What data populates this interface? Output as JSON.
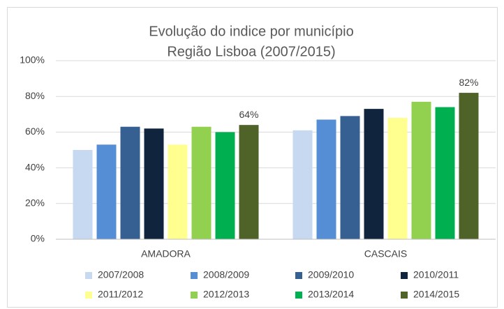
{
  "chart_data": {
    "type": "bar",
    "title": "Evolução do indice por município",
    "subtitle": "Região Lisboa (2007/2015)",
    "categories": [
      "AMADORA",
      "CASCAIS"
    ],
    "series": [
      {
        "name": "2007/2008",
        "color": "#c6d9f1",
        "values": [
          50,
          61
        ]
      },
      {
        "name": "2008/2009",
        "color": "#558ed5",
        "values": [
          53,
          67
        ]
      },
      {
        "name": "2009/2010",
        "color": "#376092",
        "values": [
          63,
          69
        ]
      },
      {
        "name": "2010/2011",
        "color": "#10243e",
        "values": [
          62,
          73
        ]
      },
      {
        "name": "2011/2012",
        "color": "#ffff8f",
        "values": [
          53,
          68
        ]
      },
      {
        "name": "2012/2013",
        "color": "#92d050",
        "values": [
          63,
          77
        ]
      },
      {
        "name": "2013/2014",
        "color": "#00b050",
        "values": [
          60,
          74
        ]
      },
      {
        "name": "2014/2015",
        "color": "#4f6228",
        "values": [
          64,
          82
        ],
        "value_labels": [
          "64%",
          "82%"
        ]
      }
    ],
    "ylim": [
      0,
      100
    ],
    "yticks": [
      {
        "value": 0,
        "label": "0%"
      },
      {
        "value": 20,
        "label": "20%"
      },
      {
        "value": 40,
        "label": "40%"
      },
      {
        "value": 60,
        "label": "60%"
      },
      {
        "value": 80,
        "label": "80%"
      },
      {
        "value": 100,
        "label": "100%"
      }
    ],
    "grid": true,
    "legend": "bottom"
  }
}
